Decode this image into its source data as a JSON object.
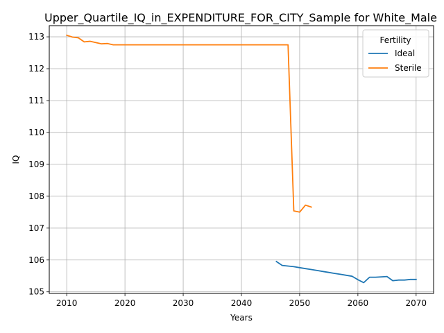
{
  "chart_data": {
    "type": "line",
    "title": "Upper_Quartile_IQ_in_EXPENDITURE_FOR_CITY_Sample for White_Male",
    "xlabel": "Years",
    "ylabel": "IQ",
    "xlim": [
      2007,
      2073
    ],
    "ylim": [
      104.95,
      113.35
    ],
    "xticks": [
      2010,
      2020,
      2030,
      2040,
      2050,
      2060,
      2070
    ],
    "yticks": [
      105,
      106,
      107,
      108,
      109,
      110,
      111,
      112,
      113
    ],
    "grid": true,
    "legend": {
      "title": "Fertility",
      "placement": "top-right"
    },
    "series": [
      {
        "name": "Ideal",
        "color": "#1f77b4",
        "x": [
          2046,
          2047,
          2048,
          2049,
          2050,
          2051,
          2052,
          2053,
          2054,
          2055,
          2056,
          2057,
          2058,
          2059,
          2060,
          2061,
          2062,
          2063,
          2064,
          2065,
          2066,
          2067,
          2068,
          2069,
          2070
        ],
        "y": [
          105.95,
          105.83,
          105.81,
          105.79,
          105.76,
          105.73,
          105.7,
          105.67,
          105.64,
          105.61,
          105.58,
          105.55,
          105.52,
          105.49,
          105.38,
          105.29,
          105.46,
          105.46,
          105.47,
          105.48,
          105.35,
          105.37,
          105.37,
          105.39,
          105.39
        ]
      },
      {
        "name": "Sterile",
        "color": "#ff7f0e",
        "x": [
          2010,
          2011,
          2012,
          2013,
          2014,
          2015,
          2016,
          2017,
          2018,
          2019,
          2020,
          2025,
          2030,
          2035,
          2040,
          2045,
          2046,
          2047,
          2048,
          2049,
          2050,
          2051,
          2052
        ],
        "y": [
          113.05,
          112.99,
          112.97,
          112.84,
          112.86,
          112.82,
          112.78,
          112.79,
          112.75,
          112.75,
          112.75,
          112.75,
          112.75,
          112.75,
          112.75,
          112.75,
          112.75,
          112.75,
          112.75,
          107.54,
          107.5,
          107.72,
          107.66
        ]
      }
    ]
  }
}
